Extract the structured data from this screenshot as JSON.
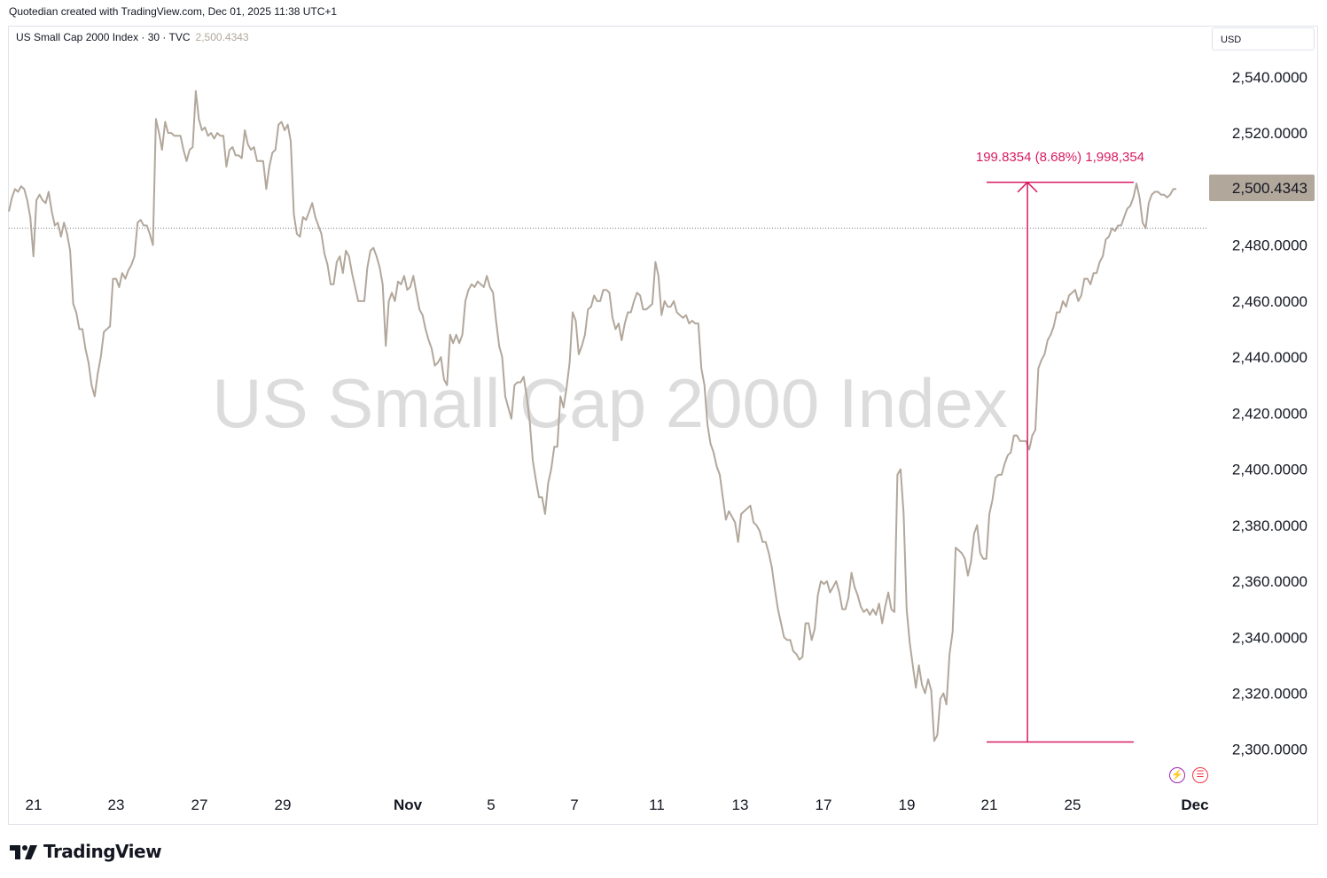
{
  "header": {
    "caption": "Quotedian created with TradingView.com, Dec 01, 2025 11:38 UTC+1"
  },
  "legend": {
    "symbol_text": "US Small Cap 2000 Index · 30 · TVC",
    "last_value": "2,500.4343"
  },
  "currency": "USD",
  "watermark": "US Small Cap 2000 Index",
  "footer": {
    "brand": "TradingView"
  },
  "colors": {
    "line": "#b2a79b",
    "measure": "#d81b60",
    "price_tag_bg": "#b2a79b",
    "dotted": "#787b86"
  },
  "chart_data": {
    "type": "line",
    "x_labels": [
      "21",
      "23",
      "27",
      "29",
      "Nov",
      "5",
      "7",
      "11",
      "13",
      "17",
      "19",
      "21",
      "25",
      "Dec"
    ],
    "ylim": [
      2286,
      2558
    ],
    "y_ticks": [
      "2,540.0000",
      "2,520.0000",
      "2,500.0000",
      "2,480.0000",
      "2,460.0000",
      "2,440.0000",
      "2,420.0000",
      "2,400.0000",
      "2,380.0000",
      "2,360.0000",
      "2,340.0000",
      "2,320.0000",
      "2,300.0000"
    ],
    "y_tick_values": [
      2540,
      2520,
      2500,
      2480,
      2460,
      2440,
      2420,
      2400,
      2380,
      2360,
      2340,
      2320,
      2300
    ],
    "last_price": 2500.4343,
    "last_price_label": "2,500.4343",
    "reference_level": 2486,
    "measure": {
      "label": "199.8354 (8.68%) 1,998,354",
      "low": 2302.6,
      "high": 2502.4,
      "from_bar": 0.8375,
      "to_bar": 0.9635,
      "arrow_bar": 0.8725
    },
    "series": [
      {
        "values": [
          2492,
          2497,
          2500,
          2499,
          2501,
          2500,
          2496,
          2490,
          2476,
          2496,
          2498,
          2496,
          2495,
          2499,
          2492,
          2487,
          2488,
          2483,
          2488,
          2484,
          2478,
          2459,
          2456,
          2450,
          2450,
          2443,
          2438,
          2430,
          2426,
          2434,
          2440,
          2449,
          2450,
          2451,
          2468,
          2468,
          2465,
          2470,
          2468,
          2471,
          2473,
          2476,
          2488,
          2489,
          2487,
          2487,
          2484,
          2480,
          2525,
          2520,
          2514,
          2524,
          2520,
          2520,
          2519,
          2519,
          2519,
          2514,
          2510,
          2514,
          2515,
          2535,
          2525,
          2521,
          2522,
          2519,
          2520,
          2518,
          2520,
          2519,
          2519,
          2508,
          2514,
          2515,
          2512,
          2512,
          2511,
          2521,
          2516,
          2514,
          2515,
          2510,
          2510,
          2510,
          2500,
          2508,
          2513,
          2514,
          2523,
          2524,
          2521,
          2523,
          2517,
          2491,
          2484,
          2483,
          2490,
          2489,
          2492,
          2495,
          2490,
          2487,
          2484,
          2477,
          2473,
          2466,
          2466,
          2474,
          2476,
          2470,
          2478,
          2476,
          2470,
          2465,
          2460,
          2460,
          2460,
          2472,
          2478,
          2479,
          2476,
          2472,
          2466,
          2444,
          2460,
          2463,
          2460,
          2467,
          2466,
          2469,
          2464,
          2465,
          2469,
          2463,
          2457,
          2455,
          2450,
          2446,
          2443,
          2437,
          2438,
          2440,
          2432,
          2430,
          2448,
          2445,
          2448,
          2445,
          2448,
          2460,
          2464,
          2466,
          2465,
          2467,
          2466,
          2465,
          2469,
          2465,
          2463,
          2453,
          2444,
          2440,
          2426,
          2422,
          2418,
          2430,
          2431,
          2431,
          2433,
          2426,
          2417,
          2403,
          2396,
          2390,
          2390,
          2384,
          2395,
          2400,
          2408,
          2408,
          2426,
          2422,
          2429,
          2438,
          2456,
          2453,
          2441,
          2444,
          2448,
          2457,
          2458,
          2462,
          2460,
          2460,
          2464,
          2464,
          2463,
          2454,
          2450,
          2452,
          2446,
          2452,
          2456,
          2456,
          2460,
          2463,
          2462,
          2457,
          2457,
          2458,
          2459,
          2474,
          2469,
          2455,
          2460,
          2458,
          2458,
          2460,
          2456,
          2455,
          2454,
          2455,
          2452,
          2453,
          2452,
          2452,
          2436,
          2430,
          2416,
          2409,
          2406,
          2401,
          2398,
          2390,
          2382,
          2385,
          2383,
          2381,
          2374,
          2384,
          2385,
          2386,
          2387,
          2381,
          2380,
          2378,
          2374,
          2374,
          2370,
          2365,
          2357,
          2350,
          2345,
          2340,
          2339,
          2339,
          2335,
          2334,
          2332,
          2333,
          2345,
          2345,
          2339,
          2343,
          2355,
          2360,
          2359,
          2360,
          2356,
          2358,
          2360,
          2356,
          2350,
          2350,
          2354,
          2363,
          2358,
          2355,
          2351,
          2349,
          2350,
          2348,
          2350,
          2348,
          2352,
          2345,
          2351,
          2356,
          2350,
          2349,
          2398,
          2400,
          2384,
          2350,
          2338,
          2330,
          2322,
          2330,
          2323,
          2320,
          2325,
          2321,
          2303,
          2305,
          2318,
          2320,
          2316,
          2334,
          2342,
          2372,
          2371,
          2370,
          2368,
          2362,
          2367,
          2377,
          2380,
          2370,
          2368,
          2368,
          2384,
          2389,
          2397,
          2398,
          2398,
          2402,
          2405,
          2406,
          2412,
          2412,
          2410,
          2410,
          2410,
          2407,
          2412,
          2414,
          2436,
          2439,
          2441,
          2446,
          2448,
          2451,
          2456,
          2456,
          2460,
          2458,
          2462,
          2463,
          2464,
          2460,
          2462,
          2468,
          2468,
          2466,
          2470,
          2470,
          2474,
          2476,
          2482,
          2483,
          2486,
          2485,
          2487,
          2487,
          2490,
          2493,
          2494,
          2497,
          2502,
          2497,
          2488,
          2486,
          2495,
          2498,
          2499,
          2499,
          2498,
          2498,
          2497,
          2498,
          2500,
          2500
        ]
      }
    ]
  }
}
